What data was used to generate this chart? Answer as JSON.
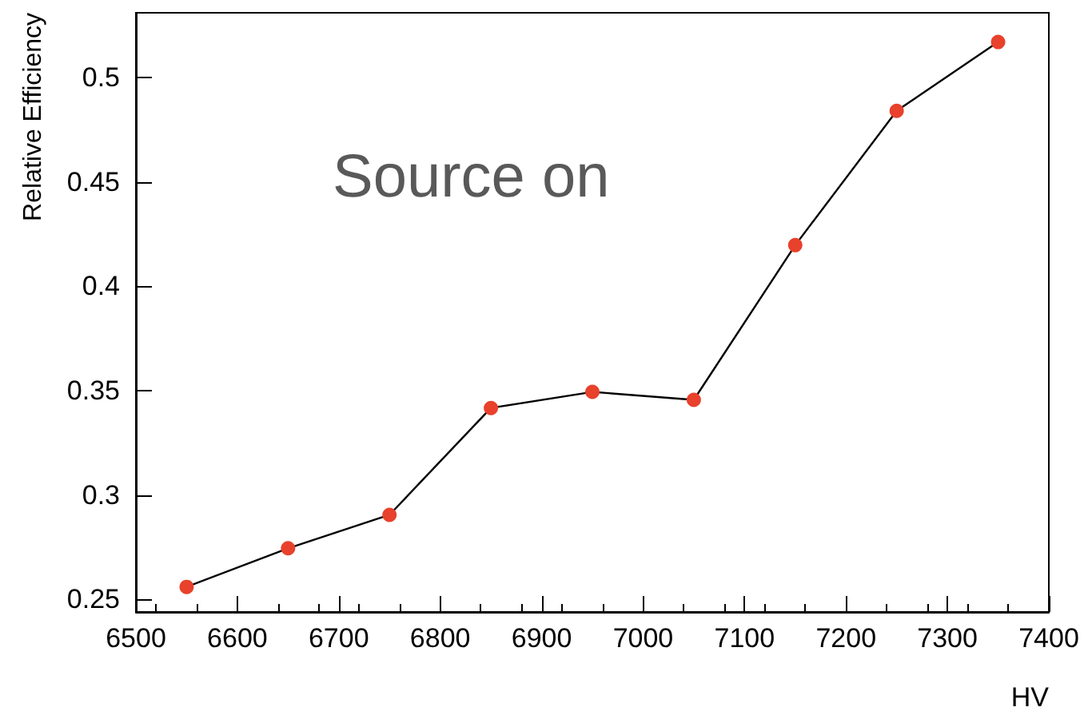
{
  "chart_data": {
    "type": "line",
    "xlabel": "HV",
    "ylabel": "Relative Efficiency",
    "annotations": [
      "Source on"
    ],
    "x": [
      6550,
      6650,
      6750,
      6850,
      6950,
      7050,
      7150,
      7250,
      7350
    ],
    "series": [
      {
        "color": "#e8412c",
        "values": [
          0.256,
          0.2745,
          0.2905,
          0.3417,
          0.3494,
          0.3456,
          0.4197,
          0.484,
          0.517
        ]
      }
    ],
    "marker": "circle",
    "line_style": "solid",
    "xlim": [
      6500,
      7400
    ],
    "xticks": [
      6500,
      6600,
      6700,
      6800,
      6900,
      7000,
      7100,
      7200,
      7300,
      7400
    ],
    "ylim": [
      0.244,
      0.531
    ],
    "yticks": [
      0.25,
      0.3,
      0.35,
      0.4,
      0.45,
      0.5
    ],
    "grid": false
  }
}
